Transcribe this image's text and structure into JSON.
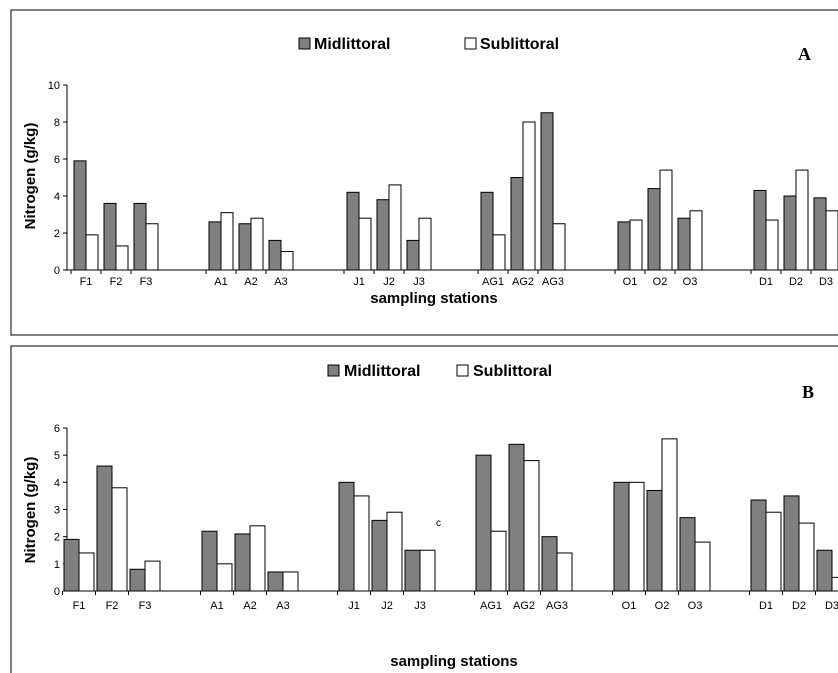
{
  "colors": {
    "midlittoral": "#808080",
    "sublittoral": "#ffffff",
    "stroke": "#000000",
    "frame": "#000000"
  },
  "chart_data": [
    {
      "type": "bar",
      "panel": "A",
      "title": "",
      "xlabel": "sampling stations",
      "ylabel": "Nitrogen (g/kg)",
      "ylim": [
        0,
        10
      ],
      "yticks": [
        0,
        2,
        4,
        6,
        8,
        10
      ],
      "legend": {
        "placement": "top-center",
        "entries": [
          "Midlittoral",
          "Sublittoral"
        ]
      },
      "groups": [
        {
          "stations": [
            "F1",
            "F2",
            "F3"
          ]
        },
        {
          "stations": [
            "A1",
            "A2",
            "A3"
          ]
        },
        {
          "stations": [
            "J1",
            "J2",
            "J3"
          ]
        },
        {
          "stations": [
            "AG1",
            "AG2",
            "AG3"
          ]
        },
        {
          "stations": [
            "O1",
            "O2",
            "O3"
          ]
        },
        {
          "stations": [
            "D1",
            "D2",
            "D3"
          ]
        }
      ],
      "categories": [
        "F1",
        "F2",
        "F3",
        "A1",
        "A2",
        "A3",
        "J1",
        "J2",
        "J3",
        "AG1",
        "AG2",
        "AG3",
        "O1",
        "O2",
        "O3",
        "D1",
        "D2",
        "D3"
      ],
      "series": [
        {
          "name": "Midlittoral",
          "values": [
            5.9,
            3.6,
            3.6,
            2.6,
            2.5,
            1.6,
            4.2,
            3.8,
            1.6,
            4.2,
            5.0,
            8.5,
            2.6,
            4.4,
            2.8,
            4.3,
            4.0,
            3.9
          ]
        },
        {
          "name": "Sublittoral",
          "values": [
            1.9,
            1.3,
            2.5,
            3.1,
            2.8,
            1.0,
            2.8,
            4.6,
            2.8,
            1.9,
            8.0,
            2.5,
            2.7,
            5.4,
            3.2,
            2.7,
            5.4,
            3.2
          ]
        }
      ]
    },
    {
      "type": "bar",
      "panel": "B",
      "title": "",
      "xlabel": "sampling stations",
      "ylabel": "Nitrogen (g/kg)",
      "ylim": [
        0,
        6
      ],
      "yticks": [
        0,
        1,
        2,
        3,
        4,
        5,
        6
      ],
      "legend": {
        "placement": "top-center",
        "entries": [
          "Midlittoral",
          "Sublittoral"
        ]
      },
      "annotations": [
        "c"
      ],
      "groups": [
        {
          "stations": [
            "F1",
            "F2",
            "F3"
          ]
        },
        {
          "stations": [
            "A1",
            "A2",
            "A3"
          ]
        },
        {
          "stations": [
            "J1",
            "J2",
            "J3"
          ]
        },
        {
          "stations": [
            "AG1",
            "AG2",
            "AG3"
          ]
        },
        {
          "stations": [
            "O1",
            "O2",
            "O3"
          ]
        },
        {
          "stations": [
            "D1",
            "D2",
            "D3"
          ]
        }
      ],
      "categories": [
        "F1",
        "F2",
        "F3",
        "A1",
        "A2",
        "A3",
        "J1",
        "J2",
        "J3",
        "AG1",
        "AG2",
        "AG3",
        "O1",
        "O2",
        "O3",
        "D1",
        "D2",
        "D3"
      ],
      "series": [
        {
          "name": "Midlittoral",
          "values": [
            1.9,
            4.6,
            0.8,
            2.2,
            2.1,
            0.7,
            4.0,
            2.6,
            1.5,
            5.0,
            5.4,
            2.0,
            4.0,
            3.7,
            2.7,
            3.35,
            3.5,
            1.5
          ]
        },
        {
          "name": "Sublittoral",
          "values": [
            1.4,
            3.8,
            1.1,
            1.0,
            2.4,
            0.7,
            3.5,
            2.9,
            1.5,
            2.2,
            4.8,
            1.4,
            4.0,
            5.6,
            1.8,
            2.9,
            2.5,
            0.5
          ]
        }
      ]
    }
  ]
}
